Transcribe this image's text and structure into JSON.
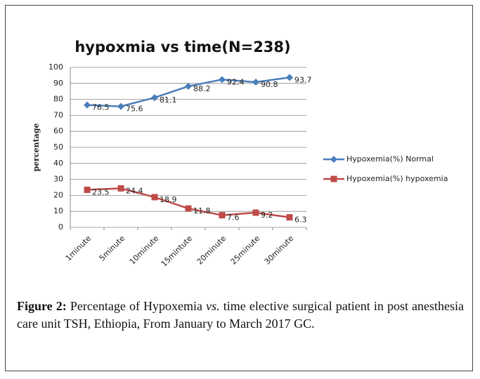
{
  "chart_data": {
    "type": "line",
    "title": "hypoxmia vs time(N=238)",
    "y_label": "percentage",
    "categories": [
      "1minute",
      "5minute",
      "10minute",
      "15mintute",
      "20minute",
      "25minute",
      "30minute"
    ],
    "series": [
      {
        "name": "Hypoxemia(%) Normal",
        "color": "#4a7ebb",
        "marker": "diamond",
        "values": [
          76.5,
          75.6,
          81.1,
          88.2,
          92.4,
          90.8,
          93.7
        ]
      },
      {
        "name": "Hypoxemia(%) hypoxemia",
        "color": "#be4b48",
        "marker": "square",
        "values": [
          23.5,
          24.4,
          18.9,
          11.8,
          7.6,
          9.2,
          6.3
        ]
      }
    ],
    "ylim": [
      0,
      100
    ],
    "yticks": [
      0,
      10,
      20,
      30,
      40,
      50,
      60,
      70,
      80,
      90,
      100
    ],
    "grid": true,
    "legend": "right"
  },
  "caption": {
    "label": "Figure 2:",
    "text_before": "Percentage of Hypoxemia",
    "italic": "vs.",
    "text_after": "time elective surgical patient in post anesthesia care unit TSH, Ethiopia, From January to March 2017 GC."
  }
}
